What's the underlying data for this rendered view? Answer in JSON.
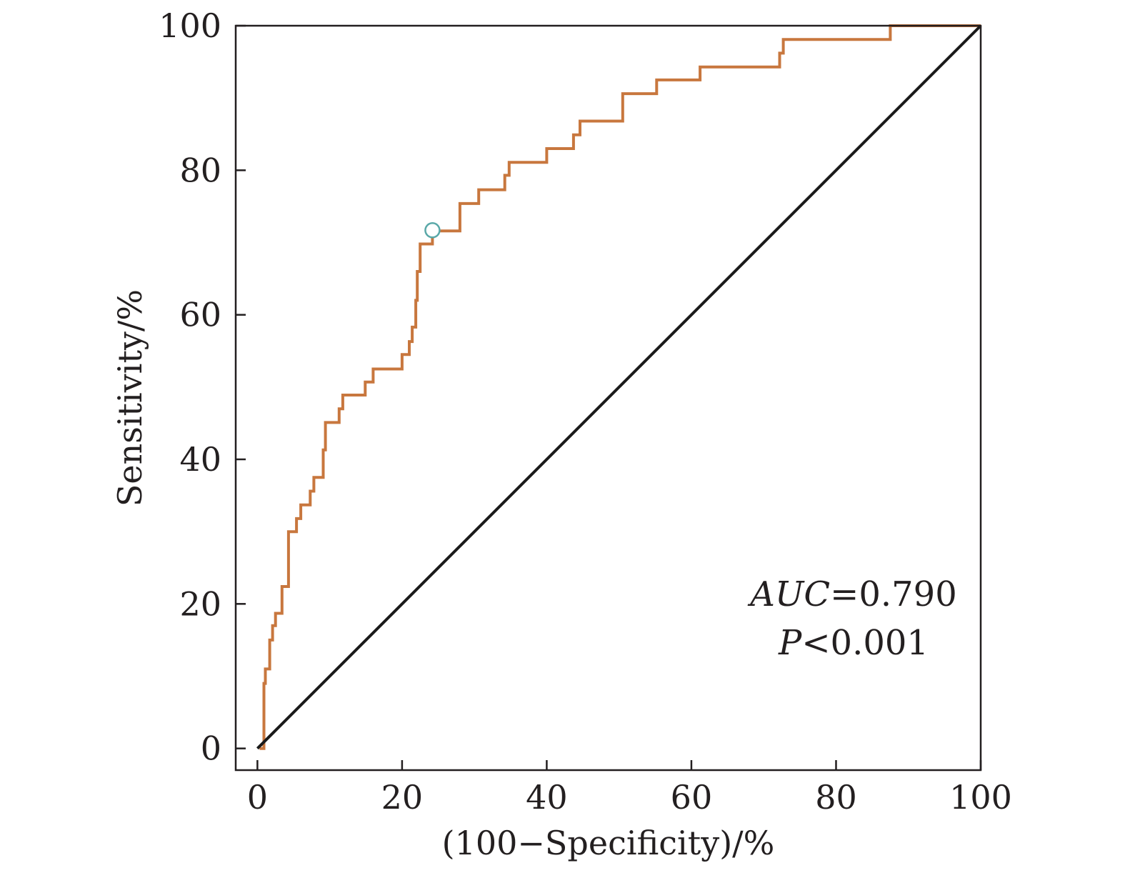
{
  "chart_data": {
    "type": "line",
    "title": "",
    "xlabel": "(100−Specificity)/%",
    "ylabel": "Sensitivity/%",
    "xlim": [
      -3,
      100
    ],
    "ylim": [
      -3,
      100
    ],
    "x_ticks": [
      0,
      20,
      40,
      60,
      80,
      100
    ],
    "y_ticks": [
      0,
      20,
      40,
      60,
      80,
      100
    ],
    "x_tick_labels": [
      "0",
      "20",
      "40",
      "60",
      "80",
      "100"
    ],
    "y_tick_labels": [
      "0",
      "20",
      "40",
      "60",
      "80",
      "100"
    ],
    "grid": false,
    "legend": "none",
    "annotations": {
      "auc_label": "AUC",
      "auc_value": "=0.790",
      "p_label": "P",
      "p_value": "<0.001"
    },
    "colors": {
      "roc": "#c8773e",
      "reference": "#1a1a1a",
      "cutoff_marker": "#5aa8a8",
      "axes": "#231f20"
    },
    "cutoff_point": {
      "x": 24.2,
      "y": 71.7
    },
    "series": [
      {
        "role": "roc-curve",
        "points": [
          [
            0.3,
            0
          ],
          [
            0.9,
            0
          ],
          [
            0.9,
            9
          ],
          [
            1.1,
            9
          ],
          [
            1.1,
            11
          ],
          [
            1.7,
            11
          ],
          [
            1.7,
            15
          ],
          [
            2.1,
            15
          ],
          [
            2.1,
            17
          ],
          [
            2.5,
            17
          ],
          [
            2.5,
            18.7
          ],
          [
            3.4,
            18.7
          ],
          [
            3.4,
            22.4
          ],
          [
            4.3,
            22.4
          ],
          [
            4.3,
            30
          ],
          [
            5.4,
            30
          ],
          [
            5.4,
            31.8
          ],
          [
            6.0,
            31.8
          ],
          [
            6.0,
            33.7
          ],
          [
            7.3,
            33.7
          ],
          [
            7.3,
            35.6
          ],
          [
            7.8,
            35.6
          ],
          [
            7.8,
            37.5
          ],
          [
            9.1,
            37.5
          ],
          [
            9.1,
            41.3
          ],
          [
            9.4,
            41.3
          ],
          [
            9.4,
            45.1
          ],
          [
            11.3,
            45.1
          ],
          [
            11.3,
            47
          ],
          [
            11.8,
            47
          ],
          [
            11.8,
            48.9
          ],
          [
            14.9,
            48.9
          ],
          [
            14.9,
            50.7
          ],
          [
            16.0,
            50.7
          ],
          [
            16.0,
            52.5
          ],
          [
            20.0,
            52.5
          ],
          [
            20.0,
            54.5
          ],
          [
            21.0,
            54.5
          ],
          [
            21.0,
            56.3
          ],
          [
            21.4,
            56.3
          ],
          [
            21.4,
            58.3
          ],
          [
            21.9,
            58.3
          ],
          [
            21.9,
            62
          ],
          [
            22.1,
            62
          ],
          [
            22.1,
            66
          ],
          [
            22.5,
            66
          ],
          [
            22.5,
            69.8
          ],
          [
            24.2,
            69.8
          ],
          [
            24.2,
            71.6
          ],
          [
            28.0,
            71.6
          ],
          [
            28.0,
            75.4
          ],
          [
            30.6,
            75.4
          ],
          [
            30.6,
            77.3
          ],
          [
            34.2,
            77.3
          ],
          [
            34.2,
            79.3
          ],
          [
            34.8,
            79.3
          ],
          [
            34.8,
            81.1
          ],
          [
            40.0,
            81.1
          ],
          [
            40.0,
            83
          ],
          [
            43.7,
            83
          ],
          [
            43.7,
            84.9
          ],
          [
            44.6,
            84.9
          ],
          [
            44.6,
            86.8
          ],
          [
            50.5,
            86.8
          ],
          [
            50.5,
            90.6
          ],
          [
            55.2,
            90.6
          ],
          [
            55.2,
            92.5
          ],
          [
            61.2,
            92.5
          ],
          [
            61.2,
            94.3
          ],
          [
            72.2,
            94.3
          ],
          [
            72.2,
            96.2
          ],
          [
            72.7,
            96.2
          ],
          [
            72.7,
            98.1
          ],
          [
            87.5,
            98.1
          ],
          [
            87.5,
            100
          ],
          [
            100,
            100
          ]
        ]
      },
      {
        "role": "reference-line",
        "points": [
          [
            0,
            0
          ],
          [
            100,
            100
          ]
        ]
      }
    ]
  }
}
